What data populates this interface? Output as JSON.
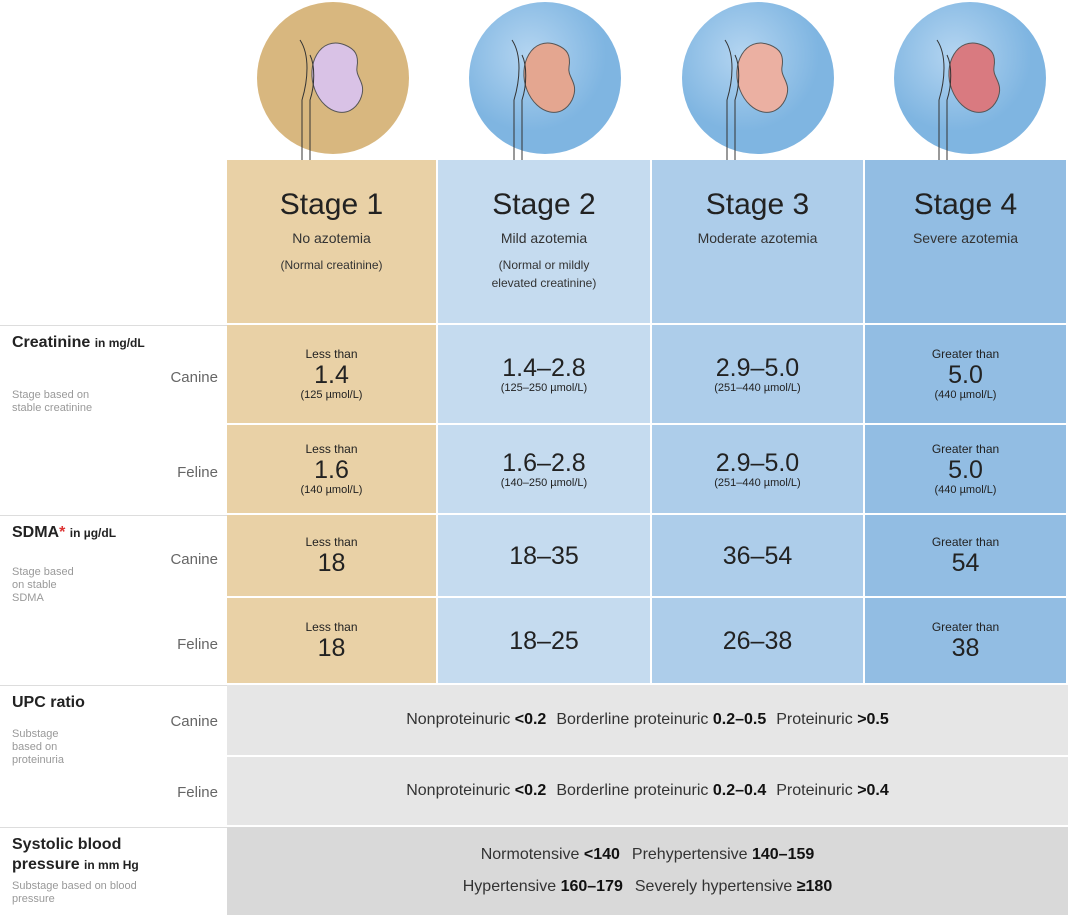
{
  "stages": [
    {
      "title": "Stage 1",
      "subtitle": "No azotemia",
      "note": "(Normal creatinine)"
    },
    {
      "title": "Stage 2",
      "subtitle": "Mild azotemia",
      "note": "(Normal or mildly elevated creatinine)"
    },
    {
      "title": "Stage 3",
      "subtitle": "Moderate azotemia"
    },
    {
      "title": "Stage 4",
      "subtitle": "Severe azotemia"
    }
  ],
  "creatinine": {
    "name": "Creatinine",
    "unit": "in mg/dL",
    "description": "Stage based on stable creatinine",
    "rows": [
      {
        "species": "Canine",
        "cells": [
          {
            "prefix": "Less than",
            "value": "1.4",
            "si": "(125 µmol/L)"
          },
          {
            "value": "1.4–2.8",
            "si": "(125–250 µmol/L)"
          },
          {
            "value": "2.9–5.0",
            "si": "(251–440 µmol/L)"
          },
          {
            "prefix": "Greater than",
            "value": "5.0",
            "si": "(440 µmol/L)"
          }
        ]
      },
      {
        "species": "Feline",
        "cells": [
          {
            "prefix": "Less than",
            "value": "1.6",
            "si": "(140 µmol/L)"
          },
          {
            "value": "1.6–2.8",
            "si": "(140–250 µmol/L)"
          },
          {
            "value": "2.9–5.0",
            "si": "(251–440 µmol/L)"
          },
          {
            "prefix": "Greater than",
            "value": "5.0",
            "si": "(440 µmol/L)"
          }
        ]
      }
    ]
  },
  "sdma": {
    "name": "SDMA",
    "mark": "*",
    "unit": "in µg/dL",
    "description": "Stage based on stable SDMA",
    "rows": [
      {
        "species": "Canine",
        "cells": [
          {
            "prefix": "Less than",
            "value": "18"
          },
          {
            "value": "18–35"
          },
          {
            "value": "36–54"
          },
          {
            "prefix": "Greater than",
            "value": "54"
          }
        ]
      },
      {
        "species": "Feline",
        "cells": [
          {
            "prefix": "Less than",
            "value": "18"
          },
          {
            "value": "18–25"
          },
          {
            "value": "26–38"
          },
          {
            "prefix": "Greater than",
            "value": "38"
          }
        ]
      }
    ]
  },
  "upc": {
    "name": "UPC ratio",
    "description": "Substage based on proteinuria",
    "rows": [
      {
        "species": "Canine",
        "items": [
          {
            "label": "Nonproteinuric",
            "value": "<0.2"
          },
          {
            "label": "Borderline proteinuric",
            "value": "0.2–0.5"
          },
          {
            "label": "Proteinuric",
            "value": ">0.5"
          }
        ]
      },
      {
        "species": "Feline",
        "items": [
          {
            "label": "Nonproteinuric",
            "value": "<0.2"
          },
          {
            "label": "Borderline proteinuric",
            "value": "0.2–0.4"
          },
          {
            "label": "Proteinuric",
            "value": ">0.4"
          }
        ]
      }
    ]
  },
  "blood_pressure": {
    "name": "Systolic blood pressure",
    "unit": "in mm Hg",
    "description": "Substage based on blood pressure",
    "lines": [
      [
        {
          "label": "Normotensive",
          "value": "<140"
        },
        {
          "label": "Prehypertensive",
          "value": "140–159"
        }
      ],
      [
        {
          "label": "Hypertensive",
          "value": "160–179"
        },
        {
          "label": "Severely hypertensive",
          "value": "≥180"
        }
      ]
    ]
  }
}
